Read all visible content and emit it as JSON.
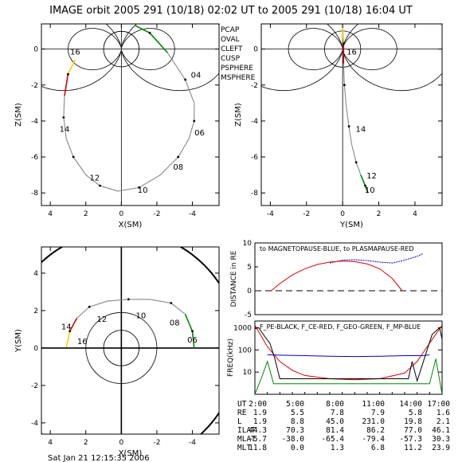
{
  "title": "IMAGE orbit 2005 291 (10/18) 02:02 UT to 2005 291 (10/18) 16:04 UT",
  "footer": "Sat Jan 21 12:15:35 2006",
  "legend": [
    {
      "label": "PCAP",
      "color": "#aaaaaa"
    },
    {
      "label": "OVAL",
      "color": "#dd0000"
    },
    {
      "label": "CLEFT",
      "color": "#0000cc"
    },
    {
      "label": "CUSP",
      "color": "#000000"
    },
    {
      "label": "PSPHERE",
      "color": "#008800"
    },
    {
      "label": "MSPHERE",
      "color": "#ffcc00"
    }
  ],
  "chart_data": [
    {
      "type": "line",
      "panel": "xz",
      "xlabel": "X(SM)",
      "ylabel": "Z(SM)",
      "xlim": [
        4.5,
        -5.5
      ],
      "ylim": [
        -8.7,
        1.4
      ],
      "xticks": [
        4,
        2,
        0,
        -2,
        -4
      ],
      "yticks": [
        0,
        -2,
        -4,
        -6,
        -8
      ],
      "orbit": [
        [
          2.6,
          -0.6
        ],
        [
          3.0,
          -1.4
        ],
        [
          3.2,
          -2.6
        ],
        [
          3.25,
          -3.8
        ],
        [
          3.1,
          -5.0
        ],
        [
          2.7,
          -6.0
        ],
        [
          2.0,
          -7.0
        ],
        [
          1.2,
          -7.6
        ],
        [
          0.2,
          -7.9
        ],
        [
          -1.0,
          -7.7
        ],
        [
          -2.2,
          -7.0
        ],
        [
          -3.2,
          -6.0
        ],
        [
          -3.8,
          -5.0
        ],
        [
          -4.1,
          -4.0
        ],
        [
          -4.1,
          -3.0
        ],
        [
          -3.6,
          -1.7
        ],
        [
          -2.6,
          -0.2
        ],
        [
          -1.6,
          0.9
        ],
        [
          -0.8,
          1.3
        ]
      ],
      "time_labels": [
        {
          "t": "16",
          "x": 2.6,
          "z": -0.3
        },
        {
          "t": "14",
          "x": 3.2,
          "z": -4.6
        },
        {
          "t": "12",
          "x": 1.5,
          "z": -7.3
        },
        {
          "t": "10",
          "x": -1.2,
          "z": -8.0
        },
        {
          "t": "08",
          "x": -3.2,
          "z": -6.7
        },
        {
          "t": "06",
          "x": -4.4,
          "z": -4.8
        },
        {
          "t": "04",
          "x": -4.2,
          "z": -1.6
        }
      ]
    },
    {
      "type": "line",
      "panel": "yz",
      "xlabel": "Y(SM)",
      "ylabel": "Z(SM)",
      "xlim": [
        -4.5,
        5.5
      ],
      "ylim": [
        -8.7,
        1.4
      ],
      "xticks": [
        -4,
        -2,
        0,
        2,
        4
      ],
      "yticks": [
        0,
        -2,
        -4,
        -6,
        -8
      ],
      "orbit": [
        [
          0.0,
          1.3
        ],
        [
          0.05,
          0.3
        ],
        [
          0.05,
          -0.8
        ],
        [
          0.1,
          -2.0
        ],
        [
          0.2,
          -3.2
        ],
        [
          0.35,
          -4.3
        ],
        [
          0.5,
          -5.3
        ],
        [
          0.75,
          -6.3
        ],
        [
          1.0,
          -7.0
        ],
        [
          1.25,
          -7.6
        ],
        [
          1.4,
          -8.0
        ]
      ],
      "time_labels": [
        {
          "t": "16",
          "x": 0.5,
          "z": -0.3
        },
        {
          "t": "14",
          "x": 1.0,
          "z": -4.6
        },
        {
          "t": "12",
          "x": 1.6,
          "z": -7.2
        },
        {
          "t": "10",
          "x": 1.5,
          "z": -8.0
        }
      ]
    },
    {
      "type": "line",
      "panel": "xy",
      "xlabel": "X(SM)",
      "ylabel": "Y(SM)",
      "xlim": [
        4.5,
        -5.5
      ],
      "ylim": [
        -4.6,
        5.4
      ],
      "xticks": [
        4,
        2,
        0,
        -2,
        -4
      ],
      "yticks": [
        4,
        2,
        0,
        -2,
        -4
      ],
      "orbit": [
        [
          3.1,
          0.05
        ],
        [
          2.9,
          0.9
        ],
        [
          2.5,
          1.6
        ],
        [
          1.8,
          2.2
        ],
        [
          0.8,
          2.5
        ],
        [
          -0.4,
          2.6
        ],
        [
          -1.6,
          2.6
        ],
        [
          -2.8,
          2.4
        ],
        [
          -3.6,
          1.8
        ],
        [
          -4.0,
          0.9
        ],
        [
          -4.1,
          0.0
        ]
      ],
      "time_labels": [
        {
          "t": "14",
          "x": 3.1,
          "y": 1.0
        },
        {
          "t": "12",
          "x": 1.1,
          "y": 1.4
        },
        {
          "t": "10",
          "x": -1.1,
          "y": 1.6
        },
        {
          "t": "08",
          "x": -3.0,
          "y": 1.2
        },
        {
          "t": "06",
          "x": -4.0,
          "y": 0.3
        },
        {
          "t": "16",
          "x": 2.2,
          "y": 0.2
        }
      ]
    },
    {
      "type": "line",
      "panel": "distance",
      "title": "to MAGNETOPAUSE-BLUE, to PLASMAPAUSE-RED",
      "ylabel": "DISTANCE in RE",
      "xlim": [
        2,
        17
      ],
      "ylim": [
        -5,
        10
      ],
      "yticks": [
        10,
        5,
        0,
        -5
      ],
      "series": [
        {
          "color": "#0000cc",
          "x": [
            8,
            9,
            10,
            11,
            12,
            13,
            14,
            15,
            15.5
          ],
          "y": [
            5.8,
            6.4,
            6.5,
            6.3,
            6.0,
            5.8,
            6.4,
            7.2,
            7.8
          ]
        },
        {
          "color": "#dd0000",
          "x": [
            3.3,
            4,
            5,
            6,
            7,
            8,
            9,
            10,
            11,
            12,
            13,
            13.8
          ],
          "y": [
            0,
            1.5,
            3.3,
            4.6,
            5.5,
            6.0,
            6.2,
            6.1,
            5.6,
            4.6,
            2.6,
            0
          ]
        }
      ]
    },
    {
      "type": "line",
      "panel": "frequency",
      "title": "F_PE-BLACK, F_CE-RED, F_GEO-GREEN, F_MP-BLUE",
      "ylabel": "FREQ(kHz)",
      "xlim": [
        2,
        17
      ],
      "ylim_log": [
        1,
        2000
      ],
      "yticks": [
        1000,
        100,
        10
      ],
      "series": [
        {
          "color": "#0000cc",
          "x": [
            3,
            4,
            6,
            8,
            10,
            12,
            14,
            15.5,
            16
          ],
          "y": [
            60,
            58,
            55,
            52,
            50,
            52,
            55,
            55,
            60
          ]
        },
        {
          "color": "#dd0000",
          "x": [
            2,
            3,
            4,
            5,
            6,
            8,
            10,
            12,
            14,
            15,
            16,
            17
          ],
          "y": [
            1300,
            140,
            30,
            12,
            7,
            5,
            4.5,
            5,
            9,
            30,
            200,
            1300
          ]
        },
        {
          "color": "#000000",
          "x": [
            2,
            2.3,
            2.8,
            3.2,
            3.6,
            4.0,
            14.3,
            14.6,
            15,
            16.2,
            16.8,
            17
          ],
          "y": [
            900,
            1000,
            400,
            200,
            40,
            5,
            5,
            30,
            4,
            500,
            1000,
            300
          ]
        },
        {
          "color": "#008800",
          "x": [
            2,
            2.5,
            3,
            3.5,
            16,
            16.5,
            17
          ],
          "y": [
            1,
            5,
            30,
            3,
            3,
            40,
            1
          ]
        }
      ]
    },
    {
      "type": "table",
      "panel": "ephemeris",
      "columns": [
        "UT",
        "2:00",
        "5:00",
        "8:00",
        "11:00",
        "14:00",
        "17:00"
      ],
      "rows": [
        [
          "RE",
          "1.9",
          "5.5",
          "7.8",
          "7.9",
          "5.8",
          "1.6"
        ],
        [
          "L",
          "1.9",
          "8.8",
          "45.0",
          "231.0",
          "19.8",
          "2.1"
        ],
        [
          "ILAT",
          "44.3",
          "70.3",
          "81.4",
          "86.2",
          "77.0",
          "46.1"
        ],
        [
          "MLAT",
          "-5.7",
          "-38.0",
          "-65.4",
          "-79.4",
          "-57.3",
          "30.3"
        ],
        [
          "MLT",
          "11.8",
          "0.0",
          "1.3",
          "6.8",
          "11.2",
          "23.9"
        ]
      ]
    }
  ]
}
